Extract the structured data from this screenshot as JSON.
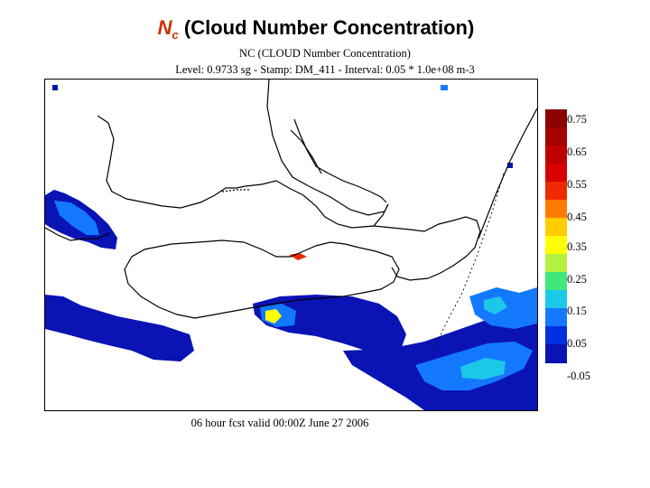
{
  "slide_title": {
    "symbol": "N",
    "subscript": "c",
    "text": " (Cloud Number Concentration)"
  },
  "plot_header": {
    "line1": "NC (CLOUD Number Concentration)",
    "line2": "Level: 0.9733 sg - Stamp: DM_411 - Interval: 0.05 * 1.0e+08 m-3"
  },
  "footer_caption": "06 hour fcst valid 00:00Z June 27 2006",
  "colorbar": {
    "labels": [
      "0.75",
      "0.65",
      "0.55",
      "0.45",
      "0.35",
      "0.25",
      "0.15",
      "0.05",
      "-0.05"
    ],
    "colors": [
      "#8b0000",
      "#a50000",
      "#bf0000",
      "#d80000",
      "#ee2b00",
      "#ff7a00",
      "#ffcc00",
      "#ffff00",
      "#b4f040",
      "#40e87c",
      "#1cc8e8",
      "#1478ff",
      "#0030e0",
      "#0a14b4"
    ]
  },
  "colors": {
    "title_symbol": "#cc3300",
    "land_fill": "#ffffff",
    "coast_line": "#000000",
    "cloud_low": "#0a14b4",
    "cloud_mid": "#1478ff",
    "cloud_high": "#1cc8e8",
    "cloud_peak": "#ffff00"
  }
}
